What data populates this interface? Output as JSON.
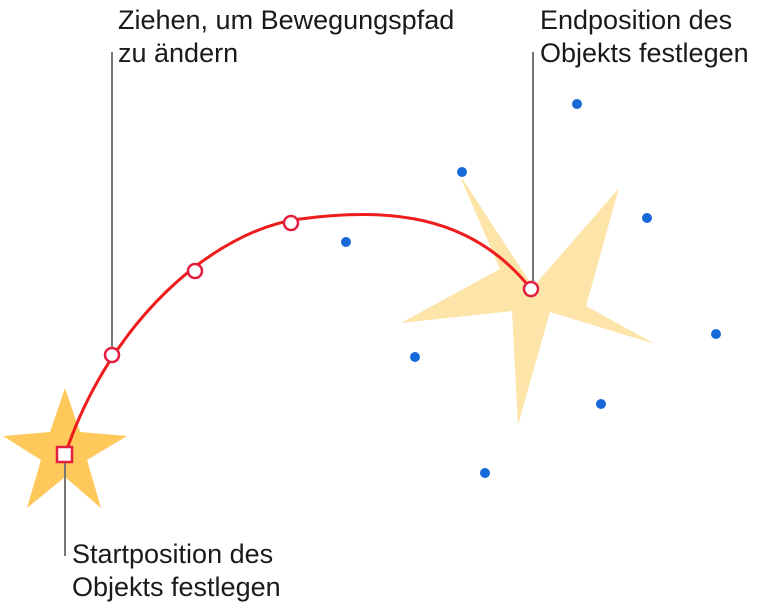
{
  "callouts": {
    "drag_path": "Ziehen, um Bewegungspfad\nzu ändern",
    "end_position": "Endposition des\nObjekts festlegen",
    "start_position": "Startposition des\nObjekts festlegen"
  },
  "colors": {
    "path": "#ee1c1c",
    "start_star": "#fec95a",
    "end_star": "#fde4a8",
    "handle": "#1769d9",
    "leader": "#777777",
    "text": "#1a1a1a"
  }
}
